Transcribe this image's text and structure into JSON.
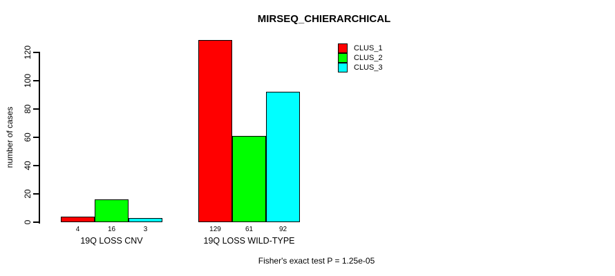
{
  "chart_data": {
    "type": "bar",
    "title": "MIRSEQ_CHIERARCHICAL",
    "xlabel": "",
    "ylabel": "number of cases",
    "categories": [
      "19Q LOSS CNV",
      "19Q LOSS WILD-TYPE"
    ],
    "series": [
      {
        "name": "CLUS_1",
        "color": "#ff0000",
        "values": [
          4,
          129
        ]
      },
      {
        "name": "CLUS_2",
        "color": "#00ff00",
        "values": [
          16,
          61
        ]
      },
      {
        "name": "CLUS_3",
        "color": "#00ffff",
        "values": [
          3,
          92
        ]
      }
    ],
    "bar_value_labels": [
      [
        4,
        16,
        3
      ],
      [
        129,
        61,
        92
      ]
    ],
    "yticks": [
      0,
      20,
      40,
      60,
      80,
      100,
      120
    ],
    "ylim": [
      0,
      129
    ],
    "grid": false,
    "legend": {
      "position": "top-right",
      "entries": [
        "CLUS_1",
        "CLUS_2",
        "CLUS_3"
      ]
    },
    "annotation": "Fisher's exact test P = 1.25e-05",
    "colors": {
      "clus_1": "#ff0000",
      "clus_2": "#00ff00",
      "clus_3": "#00ffff",
      "axis": "#000000",
      "background": "#ffffff"
    }
  }
}
